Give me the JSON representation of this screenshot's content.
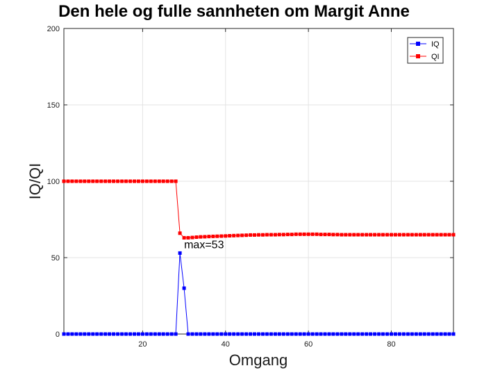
{
  "chart_data": {
    "type": "line",
    "title": "Den hele og fulle sannheten om Margit Anne",
    "xlabel": "Omgang",
    "ylabel": "IQ/QI",
    "xlim": [
      1,
      95
    ],
    "ylim": [
      0,
      200
    ],
    "xticks": [
      20,
      40,
      60,
      80
    ],
    "yticks": [
      0,
      50,
      100,
      150,
      200
    ],
    "grid": true,
    "legend_position": "top-right",
    "annotation": {
      "text": "max=53",
      "x": 29,
      "y": 53
    },
    "series": [
      {
        "name": "IQ",
        "color": "#0000ff",
        "marker": "square",
        "values": [
          0,
          0,
          0,
          0,
          0,
          0,
          0,
          0,
          0,
          0,
          0,
          0,
          0,
          0,
          0,
          0,
          0,
          0,
          0,
          0,
          0,
          0,
          0,
          0,
          0,
          0,
          0,
          0,
          53,
          30,
          0,
          0,
          0,
          0,
          0,
          0,
          0,
          0,
          0,
          0,
          0,
          0,
          0,
          0,
          0,
          0,
          0,
          0,
          0,
          0,
          0,
          0,
          0,
          0,
          0,
          0,
          0,
          0,
          0,
          0,
          0,
          0,
          0,
          0,
          0,
          0,
          0,
          0,
          0,
          0,
          0,
          0,
          0,
          0,
          0,
          0,
          0,
          0,
          0,
          0,
          0,
          0,
          0,
          0,
          0,
          0,
          0,
          0,
          0,
          0,
          0,
          0,
          0,
          0,
          0
        ]
      },
      {
        "name": "QI",
        "color": "#ff0000",
        "marker": "square",
        "values": [
          100,
          100,
          100,
          100,
          100,
          100,
          100,
          100,
          100,
          100,
          100,
          100,
          100,
          100,
          100,
          100,
          100,
          100,
          100,
          100,
          100,
          100,
          100,
          100,
          100,
          100,
          100,
          100,
          66,
          63,
          63,
          63.2,
          63.4,
          63.6,
          63.7,
          63.8,
          63.9,
          64,
          64.1,
          64.2,
          64.3,
          64.4,
          64.5,
          64.6,
          64.7,
          64.8,
          64.8,
          64.9,
          64.9,
          65,
          65,
          65,
          65.1,
          65.1,
          65.2,
          65.2,
          65.3,
          65.3,
          65.3,
          65.3,
          65.3,
          65.3,
          65.2,
          65.2,
          65.2,
          65.1,
          65.1,
          65,
          65,
          65,
          65,
          65,
          65,
          65,
          65,
          65,
          65,
          65,
          65,
          65,
          65,
          65,
          65,
          65,
          65,
          65,
          65,
          65,
          65,
          65,
          65,
          65,
          65,
          65,
          65
        ]
      }
    ]
  }
}
